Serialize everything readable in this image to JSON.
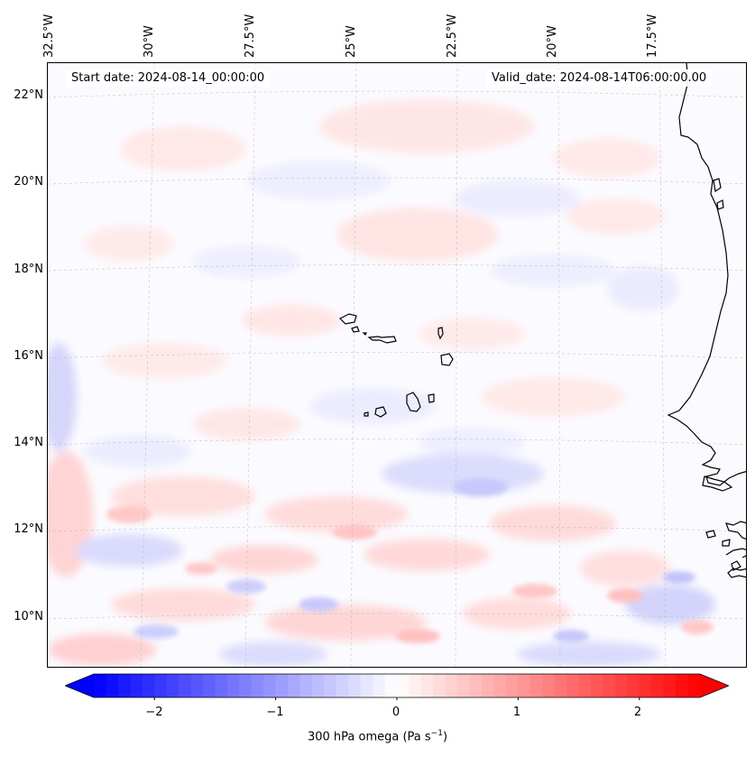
{
  "header": {
    "start_date": "Start date: 2024-08-14_00:00:00",
    "valid_date": "Valid_date: 2024-08-14T06:00:00.00"
  },
  "axes": {
    "longitude_labels": [
      "32.5°W",
      "30°W",
      "27.5°W",
      "25°W",
      "22.5°W",
      "20°W",
      "17.5°W"
    ],
    "latitude_labels": [
      "22°N",
      "20°N",
      "18°N",
      "16°N",
      "14°N",
      "12°N",
      "10°N"
    ]
  },
  "map": {
    "variable": "300 hPa omega",
    "gridlines": true,
    "coastline_color": "#000000",
    "features": [
      "Cape Verde islands",
      "West African coastline"
    ]
  },
  "colorbar": {
    "label": "300 hPa omega (Pa s",
    "label_sup": "−1",
    "label_end": ")",
    "ticks": [
      "−2",
      "−1",
      "0",
      "1",
      "2"
    ],
    "tick_values": [
      -2,
      -1,
      0,
      1,
      2
    ],
    "min": -2.5,
    "max": 2.5,
    "cmap": "bwr",
    "extend": "both",
    "colors": {
      "low": "#0000ff",
      "mid": "#ffffff",
      "high": "#ff0000"
    }
  }
}
